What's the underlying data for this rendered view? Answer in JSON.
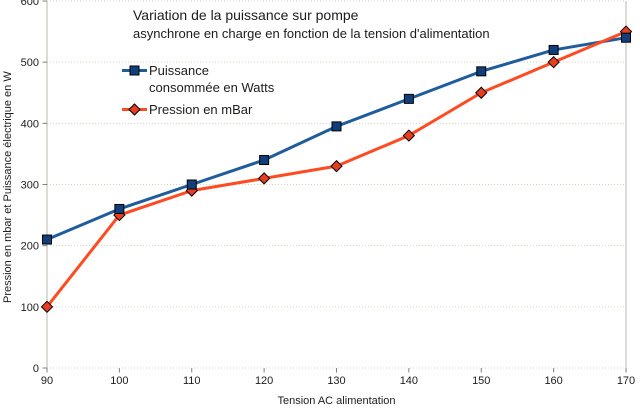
{
  "title": {
    "line1": "Variation de la puissance sur pompe",
    "line2": "asynchrone en charge en fonction de la tension d'alimentation"
  },
  "legend": {
    "series1_line1": "Puissance",
    "series1_line2": "consommée en Watts",
    "series2": "Pression en mBar"
  },
  "chart_data": {
    "type": "line",
    "title": "Variation de la puissance sur pompe asynchrone en charge en fonction de la tension d'alimentation",
    "xlabel": "Tension AC alimentation",
    "ylabel": "Pression en mbar et Puissance électrique en W",
    "x": [
      90,
      100,
      110,
      120,
      130,
      140,
      150,
      160,
      170
    ],
    "series": [
      {
        "name": "Puissance consommée en Watts",
        "values": [
          210,
          260,
          300,
          340,
          395,
          440,
          485,
          520,
          540
        ],
        "line_color": "#1e5c9c",
        "marker": "square",
        "marker_color": "#123f7c"
      },
      {
        "name": "Pression en mBar",
        "values": [
          100,
          250,
          290,
          310,
          330,
          380,
          450,
          500,
          550
        ],
        "line_color": "#ff4b22",
        "marker": "diamond",
        "marker_color": "#e63e1f"
      }
    ],
    "xlim": [
      90,
      170
    ],
    "ylim": [
      0,
      600
    ],
    "xticks": [
      90,
      100,
      110,
      120,
      130,
      140,
      150,
      160,
      170
    ],
    "yticks": [
      0,
      100,
      200,
      300,
      400,
      500,
      600
    ],
    "grid": true,
    "legend_position": "upper-left-inside",
    "colors": {
      "grid": "#d6d6c4",
      "axis": "#b9b9ab",
      "tick": "#808080",
      "text": "#1c1c1c",
      "background": "#ffffff"
    }
  }
}
